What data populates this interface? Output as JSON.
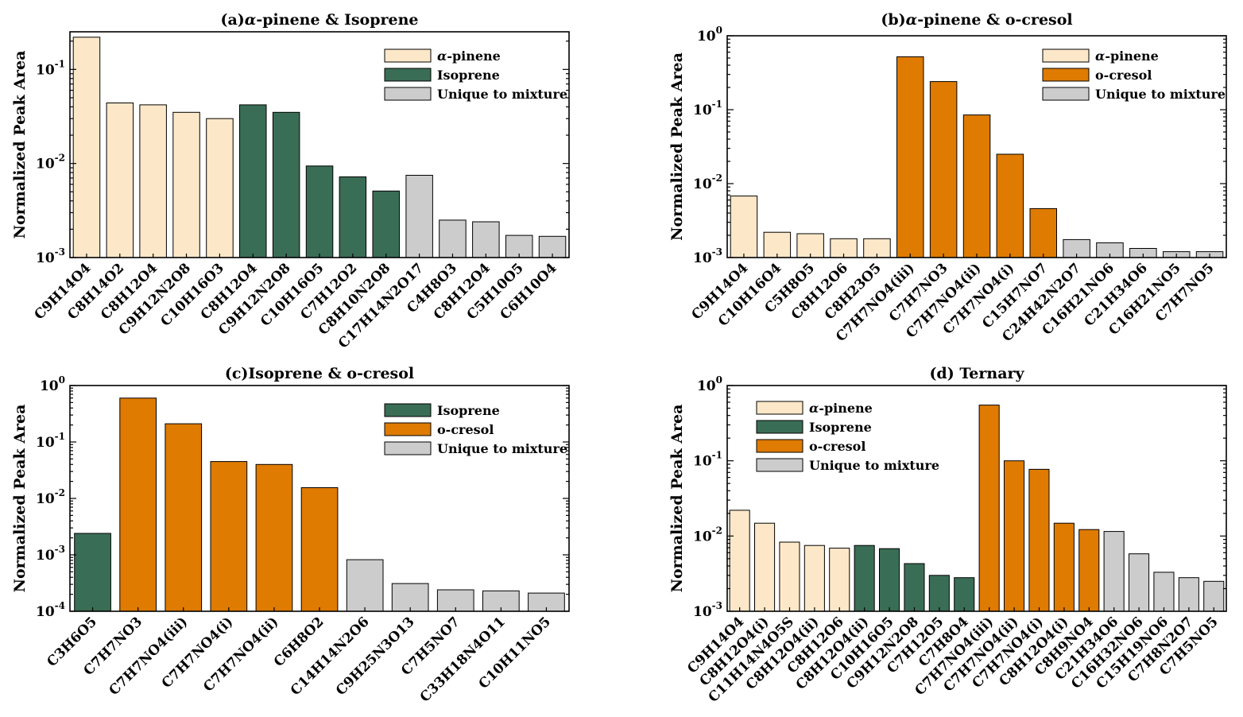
{
  "colors": {
    "a_pinene": "#FCE8C8",
    "isoprene": "#3A6D55",
    "o_cresol": "#DE7B00",
    "unique": "#CCCCCC"
  },
  "chart_data": [
    {
      "type": "bar",
      "id": "a",
      "title_prefix": "(a)",
      "title_alpha": "α",
      "title_rest": "-pinene & Isoprene",
      "ylabel": "Normalized Peak Area",
      "yscale": "log",
      "ylim_exp": [
        -3,
        -0.6
      ],
      "ticks": [
        -3,
        -2,
        -1
      ],
      "legend_position": "top-right",
      "legend": [
        {
          "label": "-pinene",
          "alpha": true,
          "group": "a_pinene"
        },
        {
          "label": "Isoprene",
          "group": "isoprene"
        },
        {
          "label": "Unique to mixture",
          "group": "unique"
        }
      ],
      "categories": [
        "C9H14O4",
        "C8H14O2",
        "C8H12O4",
        "C9H12N2O8",
        "C10H16O3",
        "C8H12O4",
        "C9H12N2O8",
        "C10H16O5",
        "C7H12O2",
        "C8H10N2O8",
        "C17H14N2O17",
        "C4H8O3",
        "C8H12O4",
        "C5H10O5",
        "C6H10O4"
      ],
      "values": [
        0.22,
        0.044,
        0.042,
        0.035,
        0.03,
        0.042,
        0.035,
        0.0094,
        0.0072,
        0.0051,
        0.0075,
        0.0025,
        0.0024,
        0.00172,
        0.00168
      ],
      "groups": [
        "a_pinene",
        "a_pinene",
        "a_pinene",
        "a_pinene",
        "a_pinene",
        "isoprene",
        "isoprene",
        "isoprene",
        "isoprene",
        "isoprene",
        "unique",
        "unique",
        "unique",
        "unique",
        "unique"
      ]
    },
    {
      "type": "bar",
      "id": "b",
      "title_prefix": "(b)",
      "title_alpha": "α",
      "title_rest": "-pinene & o-cresol",
      "ylabel": "Normalized Peak Area",
      "yscale": "log",
      "ylim_exp": [
        -3,
        0
      ],
      "ticks": [
        -3,
        -2,
        -1,
        0
      ],
      "legend_position": "top-right",
      "legend": [
        {
          "label": "-pinene",
          "alpha": true,
          "group": "a_pinene"
        },
        {
          "label": "o-cresol",
          "group": "o_cresol"
        },
        {
          "label": "Unique to mixture",
          "group": "unique"
        }
      ],
      "categories": [
        "C9H14O4",
        "C10H16O4",
        "C5H8O5",
        "C8H12O6",
        "C8H23O5",
        "C7H7NO4(iii)",
        "C7H7NO3",
        "C7H7NO4(ii)",
        "C7H7NO4(i)",
        "C15H7NO7",
        "C24H42N2O7",
        "C16H21NO6",
        "C21H34O6",
        "C16H21NO5",
        "C7H7NO5"
      ],
      "values": [
        0.0068,
        0.0022,
        0.0021,
        0.0018,
        0.0018,
        0.52,
        0.24,
        0.085,
        0.025,
        0.0046,
        0.00175,
        0.00158,
        0.00133,
        0.0012,
        0.0012
      ],
      "groups": [
        "a_pinene",
        "a_pinene",
        "a_pinene",
        "a_pinene",
        "a_pinene",
        "o_cresol",
        "o_cresol",
        "o_cresol",
        "o_cresol",
        "o_cresol",
        "unique",
        "unique",
        "unique",
        "unique",
        "unique"
      ]
    },
    {
      "type": "bar",
      "id": "c",
      "title_prefix": "(c)",
      "title_alpha": "",
      "title_rest": "Isoprene & o-cresol",
      "ylabel": "Normalized Peak Area",
      "yscale": "log",
      "ylim_exp": [
        -4,
        0
      ],
      "ticks": [
        -4,
        -3,
        -2,
        -1,
        0
      ],
      "legend_position": "top-right",
      "legend": [
        {
          "label": "Isoprene",
          "group": "isoprene"
        },
        {
          "label": "o-cresol",
          "group": "o_cresol"
        },
        {
          "label": "Unique to mixture",
          "group": "unique"
        }
      ],
      "categories": [
        "C3H6O5",
        "C7H7NO3",
        "C7H7NO4(iii)",
        "C7H7NO4(i)",
        "C7H7NO4(ii)",
        "C6H8O2",
        "C14H14N2O6",
        "C9H25N3O13",
        "C7H5NO7",
        "C33H18N4O11",
        "C10H11NO5"
      ],
      "values": [
        0.0024,
        0.6,
        0.21,
        0.045,
        0.04,
        0.0155,
        0.00082,
        0.00031,
        0.00024,
        0.00023,
        0.00021
      ],
      "groups": [
        "isoprene",
        "o_cresol",
        "o_cresol",
        "o_cresol",
        "o_cresol",
        "o_cresol",
        "unique",
        "unique",
        "unique",
        "unique",
        "unique"
      ]
    },
    {
      "type": "bar",
      "id": "d",
      "title_prefix": "(d)",
      "title_alpha": "",
      "title_rest": " Ternary",
      "ylabel": "Normalized Peak Area",
      "yscale": "log",
      "ylim_exp": [
        -3,
        0
      ],
      "ticks": [
        -3,
        -2,
        -1,
        0
      ],
      "legend_position": "top-left",
      "legend": [
        {
          "label": "-pinene",
          "alpha": true,
          "group": "a_pinene"
        },
        {
          "label": "Isoprene",
          "group": "isoprene"
        },
        {
          "label": "o-cresol",
          "group": "o_cresol"
        },
        {
          "label": "Unique to mixture",
          "group": "unique"
        }
      ],
      "categories": [
        "C9H14O4",
        "C8H12O4(i)",
        "C11H14N4O5S",
        "C8H12O4(ii)",
        "C8H12O6",
        "C8H12O4(ii)",
        "C10H16O5",
        "C9H12N2O8",
        "C7H12O5",
        "C7H8O4",
        "C7H7NO4(iii)",
        "C7H7NO4(ii)",
        "C7H7NO4(i)",
        "C8H12O4(i)",
        "C8H9NO4",
        "C21H34O6",
        "C16H32NO6",
        "C15H19NO6",
        "C7H8N2O7",
        "C7H5NO5"
      ],
      "values": [
        0.022,
        0.0148,
        0.0083,
        0.0075,
        0.0069,
        0.0075,
        0.0068,
        0.0043,
        0.003,
        0.0028,
        0.55,
        0.1,
        0.077,
        0.0148,
        0.0122,
        0.0115,
        0.0058,
        0.0033,
        0.0028,
        0.0025
      ],
      "groups": [
        "a_pinene",
        "a_pinene",
        "a_pinene",
        "a_pinene",
        "a_pinene",
        "isoprene",
        "isoprene",
        "isoprene",
        "isoprene",
        "isoprene",
        "o_cresol",
        "o_cresol",
        "o_cresol",
        "o_cresol",
        "o_cresol",
        "unique",
        "unique",
        "unique",
        "unique",
        "unique"
      ]
    }
  ]
}
